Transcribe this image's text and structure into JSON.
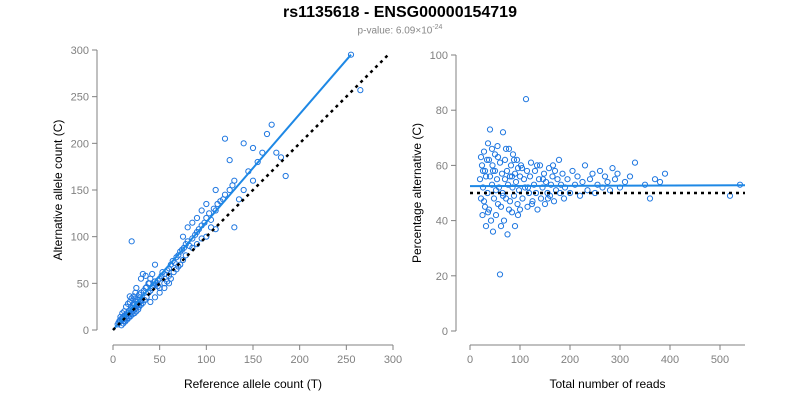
{
  "title": "rs1135618 - ENSG00000154719",
  "subtitle": {
    "prefix": "p-value: 6.09×10",
    "exponent": "-24"
  },
  "colors": {
    "points": "#1f77e0",
    "fit_line": "#1e88e5",
    "reference_line": "#000000",
    "axis": "#808080"
  },
  "chart_data": [
    {
      "type": "scatter",
      "xlabel": "Reference allele count (T)",
      "ylabel": "Alternative allele count (C)",
      "xlim": [
        0,
        300
      ],
      "ylim": [
        0,
        300
      ],
      "xticks": [
        "0",
        "50",
        "100",
        "150",
        "200",
        "250",
        "300"
      ],
      "yticks": [
        "0",
        "50",
        "100",
        "150",
        "200",
        "250",
        "300"
      ],
      "grid": false,
      "lines": [
        {
          "style": "solid",
          "color": "#1e88e5",
          "x": [
            0,
            255
          ],
          "y": [
            0,
            295
          ]
        },
        {
          "style": "dotted",
          "color": "#000000",
          "x": [
            0,
            295
          ],
          "y": [
            0,
            295
          ]
        }
      ],
      "points": [
        [
          5,
          6
        ],
        [
          6,
          8
        ],
        [
          7,
          10
        ],
        [
          8,
          9
        ],
        [
          9,
          12
        ],
        [
          10,
          11
        ],
        [
          11,
          14
        ],
        [
          12,
          10
        ],
        [
          13,
          16
        ],
        [
          14,
          13
        ],
        [
          15,
          18
        ],
        [
          16,
          15
        ],
        [
          17,
          20
        ],
        [
          18,
          17
        ],
        [
          19,
          22
        ],
        [
          20,
          19
        ],
        [
          21,
          24
        ],
        [
          22,
          21
        ],
        [
          23,
          27
        ],
        [
          24,
          23
        ],
        [
          25,
          30
        ],
        [
          26,
          26
        ],
        [
          27,
          32
        ],
        [
          28,
          28
        ],
        [
          29,
          35
        ],
        [
          30,
          31
        ],
        [
          8,
          14
        ],
        [
          10,
          18
        ],
        [
          12,
          20
        ],
        [
          14,
          25
        ],
        [
          16,
          28
        ],
        [
          18,
          30
        ],
        [
          20,
          34
        ],
        [
          22,
          36
        ],
        [
          24,
          40
        ],
        [
          9,
          5
        ],
        [
          11,
          7
        ],
        [
          13,
          9
        ],
        [
          15,
          11
        ],
        [
          17,
          13
        ],
        [
          19,
          15
        ],
        [
          21,
          17
        ],
        [
          23,
          18
        ],
        [
          25,
          20
        ],
        [
          27,
          22
        ],
        [
          28,
          25
        ],
        [
          30,
          27
        ],
        [
          32,
          29
        ],
        [
          34,
          32
        ],
        [
          36,
          35
        ],
        [
          38,
          40
        ],
        [
          40,
          42
        ],
        [
          42,
          45
        ],
        [
          44,
          48
        ],
        [
          46,
          50
        ],
        [
          48,
          53
        ],
        [
          50,
          55
        ],
        [
          52,
          58
        ],
        [
          35,
          45
        ],
        [
          38,
          50
        ],
        [
          40,
          55
        ],
        [
          42,
          60
        ],
        [
          45,
          52
        ],
        [
          48,
          47
        ],
        [
          50,
          45
        ],
        [
          53,
          62
        ],
        [
          55,
          60
        ],
        [
          58,
          64
        ],
        [
          60,
          66
        ],
        [
          62,
          70
        ],
        [
          64,
          74
        ],
        [
          66,
          72
        ],
        [
          68,
          78
        ],
        [
          70,
          80
        ],
        [
          72,
          84
        ],
        [
          74,
          86
        ],
        [
          76,
          88
        ],
        [
          78,
          92
        ],
        [
          80,
          95
        ],
        [
          55,
          50
        ],
        [
          58,
          52
        ],
        [
          60,
          58
        ],
        [
          62,
          55
        ],
        [
          65,
          62
        ],
        [
          68,
          65
        ],
        [
          70,
          68
        ],
        [
          72,
          70
        ],
        [
          75,
          75
        ],
        [
          78,
          80
        ],
        [
          40,
          30
        ],
        [
          45,
          35
        ],
        [
          50,
          40
        ],
        [
          55,
          45
        ],
        [
          60,
          50
        ],
        [
          30,
          40
        ],
        [
          33,
          42
        ],
        [
          36,
          46
        ],
        [
          39,
          50
        ],
        [
          20,
          95
        ],
        [
          82,
          90
        ],
        [
          85,
          98
        ],
        [
          88,
          102
        ],
        [
          90,
          105
        ],
        [
          92,
          108
        ],
        [
          95,
          112
        ],
        [
          98,
          115
        ],
        [
          100,
          120
        ],
        [
          103,
          125
        ],
        [
          105,
          118
        ],
        [
          108,
          130
        ],
        [
          110,
          128
        ],
        [
          112,
          135
        ],
        [
          115,
          138
        ],
        [
          118,
          140
        ],
        [
          120,
          145
        ],
        [
          125,
          150
        ],
        [
          128,
          155
        ],
        [
          130,
          160
        ],
        [
          85,
          88
        ],
        [
          90,
          92
        ],
        [
          95,
          98
        ],
        [
          100,
          100
        ],
        [
          105,
          110
        ],
        [
          110,
          108
        ],
        [
          75,
          100
        ],
        [
          80,
          110
        ],
        [
          85,
          115
        ],
        [
          90,
          120
        ],
        [
          130,
          110
        ],
        [
          135,
          140
        ],
        [
          140,
          150
        ],
        [
          145,
          170
        ],
        [
          150,
          160
        ],
        [
          155,
          180
        ],
        [
          160,
          190
        ],
        [
          165,
          210
        ],
        [
          170,
          220
        ],
        [
          175,
          190
        ],
        [
          180,
          185
        ],
        [
          185,
          165
        ],
        [
          120,
          205
        ],
        [
          125,
          182
        ],
        [
          140,
          200
        ],
        [
          150,
          195
        ],
        [
          100,
          135
        ],
        [
          95,
          128
        ],
        [
          110,
          150
        ],
        [
          45,
          70
        ],
        [
          255,
          295
        ],
        [
          265,
          257
        ],
        [
          30,
          55
        ],
        [
          32,
          60
        ],
        [
          35,
          58
        ],
        [
          25,
          45
        ],
        [
          28,
          38
        ],
        [
          18,
          36
        ],
        [
          22,
          28
        ],
        [
          24,
          33
        ]
      ]
    },
    {
      "type": "scatter",
      "xlabel": "Total number of reads",
      "ylabel": "Percentage alternative (C)",
      "xlim": [
        0,
        550
      ],
      "ylim": [
        0,
        100
      ],
      "xticks": [
        "0",
        "100",
        "200",
        "300",
        "400",
        "500"
      ],
      "yticks": [
        "0",
        "20",
        "40",
        "60",
        "80",
        "100"
      ],
      "grid": false,
      "lines": [
        {
          "style": "solid",
          "color": "#1e88e5",
          "x": [
            0,
            550
          ],
          "y": [
            52.5,
            52.8
          ]
        },
        {
          "style": "dotted",
          "color": "#000000",
          "x": [
            0,
            550
          ],
          "y": [
            50,
            50
          ]
        }
      ],
      "points": [
        [
          20,
          55
        ],
        [
          22,
          48
        ],
        [
          24,
          60
        ],
        [
          25,
          42
        ],
        [
          26,
          52
        ],
        [
          28,
          65
        ],
        [
          30,
          45
        ],
        [
          30,
          58
        ],
        [
          32,
          38
        ],
        [
          34,
          62
        ],
        [
          35,
          50
        ],
        [
          36,
          68
        ],
        [
          38,
          44
        ],
        [
          40,
          56
        ],
        [
          40,
          73
        ],
        [
          42,
          40
        ],
        [
          44,
          53
        ],
        [
          45,
          60
        ],
        [
          46,
          36
        ],
        [
          48,
          48
        ],
        [
          50,
          58
        ],
        [
          50,
          64
        ],
        [
          52,
          42
        ],
        [
          54,
          55
        ],
        [
          55,
          67
        ],
        [
          56,
          46
        ],
        [
          58,
          52
        ],
        [
          60,
          61
        ],
        [
          60,
          20.5
        ],
        [
          62,
          45
        ],
        [
          64,
          57
        ],
        [
          65,
          50
        ],
        [
          66,
          72
        ],
        [
          68,
          40
        ],
        [
          70,
          55
        ],
        [
          70,
          62
        ],
        [
          72,
          48
        ],
        [
          74,
          58
        ],
        [
          75,
          35
        ],
        [
          76,
          53
        ],
        [
          78,
          66
        ],
        [
          80,
          47
        ],
        [
          80,
          56
        ],
        [
          82,
          60
        ],
        [
          84,
          43
        ],
        [
          85,
          52
        ],
        [
          86,
          64
        ],
        [
          88,
          49
        ],
        [
          90,
          57
        ],
        [
          90,
          38
        ],
        [
          92,
          54
        ],
        [
          94,
          62
        ],
        [
          95,
          46
        ],
        [
          96,
          59
        ],
        [
          98,
          51
        ],
        [
          100,
          56
        ],
        [
          100,
          44
        ],
        [
          102,
          60
        ],
        [
          105,
          48
        ],
        [
          108,
          55
        ],
        [
          110,
          52
        ],
        [
          112,
          84
        ],
        [
          114,
          58
        ],
        [
          115,
          45
        ],
        [
          118,
          50
        ],
        [
          120,
          56
        ],
        [
          122,
          61
        ],
        [
          125,
          47
        ],
        [
          128,
          53
        ],
        [
          130,
          58
        ],
        [
          132,
          50
        ],
        [
          135,
          44
        ],
        [
          138,
          55
        ],
        [
          140,
          60
        ],
        [
          142,
          48
        ],
        [
          145,
          52
        ],
        [
          148,
          57
        ],
        [
          150,
          46
        ],
        [
          152,
          54
        ],
        [
          155,
          50
        ],
        [
          158,
          59
        ],
        [
          160,
          49
        ],
        [
          162,
          53
        ],
        [
          165,
          56
        ],
        [
          168,
          47
        ],
        [
          170,
          58
        ],
        [
          172,
          51
        ],
        [
          175,
          55
        ],
        [
          178,
          62
        ],
        [
          180,
          50
        ],
        [
          182,
          53
        ],
        [
          185,
          57
        ],
        [
          188,
          48
        ],
        [
          190,
          52
        ],
        [
          195,
          55
        ],
        [
          200,
          50
        ],
        [
          205,
          58
        ],
        [
          210,
          53
        ],
        [
          215,
          56
        ],
        [
          220,
          49
        ],
        [
          225,
          54
        ],
        [
          230,
          60
        ],
        [
          235,
          51
        ],
        [
          240,
          55
        ],
        [
          245,
          57
        ],
        [
          250,
          50
        ],
        [
          255,
          53
        ],
        [
          260,
          58
        ],
        [
          265,
          52
        ],
        [
          270,
          56
        ],
        [
          275,
          54
        ],
        [
          280,
          51
        ],
        [
          285,
          59
        ],
        [
          290,
          55
        ],
        [
          295,
          57
        ],
        [
          300,
          52
        ],
        [
          310,
          54
        ],
        [
          320,
          56
        ],
        [
          330,
          61
        ],
        [
          350,
          53
        ],
        [
          360,
          48
        ],
        [
          370,
          55
        ],
        [
          380,
          54
        ],
        [
          390,
          57
        ],
        [
          520,
          49
        ],
        [
          540,
          53
        ],
        [
          22,
          63
        ],
        [
          26,
          58
        ],
        [
          28,
          47
        ],
        [
          32,
          56
        ],
        [
          36,
          43
        ],
        [
          38,
          62
        ],
        [
          44,
          66
        ],
        [
          46,
          58
        ],
        [
          52,
          51
        ],
        [
          56,
          63
        ],
        [
          62,
          38
        ],
        [
          66,
          49
        ],
        [
          72,
          66
        ],
        [
          78,
          44
        ],
        [
          84,
          56
        ],
        [
          88,
          62
        ],
        [
          96,
          42
        ],
        [
          104,
          59
        ],
        [
          116,
          52
        ],
        [
          124,
          46
        ],
        [
          134,
          60
        ],
        [
          146,
          55
        ],
        [
          156,
          48
        ],
        [
          166,
          60
        ]
      ]
    }
  ]
}
